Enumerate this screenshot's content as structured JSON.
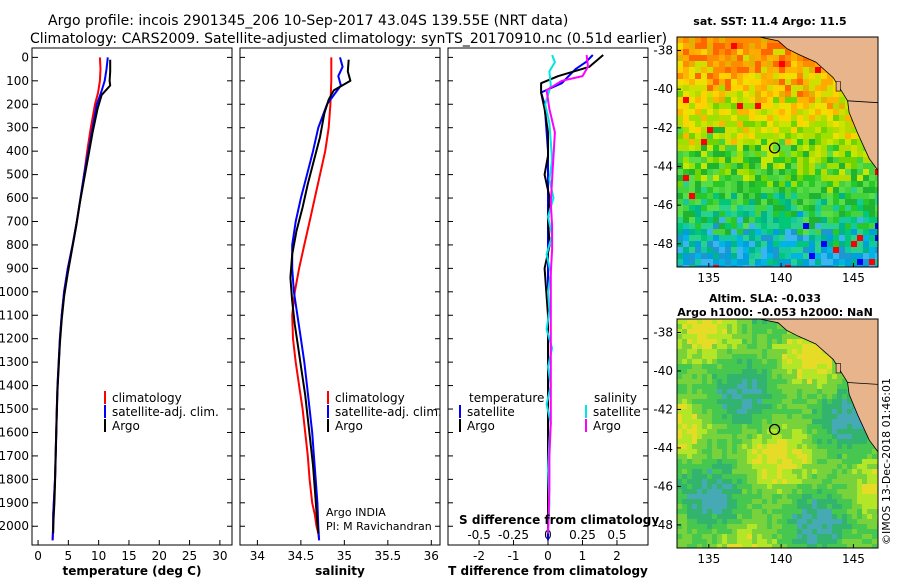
{
  "title": {
    "line1": "Argo profile: incois 2901345_206 10-Sep-2017 43.04S 139.55E (NRT data)",
    "line2": "Climatology: CARS2009. Satellite-adjusted climatology: synTS_20170910.nc (0.51d earlier)"
  },
  "colors": {
    "climatology": "#ff0000",
    "satellite": "#0000ff",
    "argo": "#000000",
    "sal_satellite": "#00e5e5",
    "sal_argo": "#ff00ff"
  },
  "depth_axis": {
    "ticks": [
      "0",
      "100",
      "200",
      "300",
      "400",
      "500",
      "600",
      "700",
      "800",
      "900",
      "1000",
      "1100",
      "1200",
      "1300",
      "1400",
      "1500",
      "1600",
      "1700",
      "1800",
      "1900",
      "2000"
    ],
    "range": [
      -40,
      2080
    ]
  },
  "chart_data": [
    {
      "type": "line",
      "name": "temperature-panel",
      "xlabel": "temperature (deg C)",
      "xlim": [
        -1,
        32
      ],
      "xticks": [
        "0",
        "5",
        "10",
        "15",
        "20",
        "25",
        "30"
      ],
      "legend": [
        "climatology",
        "satellite-adj. clim.",
        "Argo"
      ],
      "series": [
        {
          "name": "climatology",
          "color": "#ff0000",
          "x": [
            10.2,
            10.3,
            10.2,
            9.9,
            9.4,
            8.7,
            8.1,
            7.6,
            7.0,
            6.4,
            5.7,
            4.9,
            4.3,
            3.9,
            3.6,
            3.4,
            3.2,
            3.1,
            3.0,
            2.9,
            2.8,
            2.7,
            2.6,
            2.5,
            2.5,
            2.45,
            2.4
          ],
          "y": [
            0,
            50,
            100,
            150,
            200,
            300,
            400,
            500,
            600,
            700,
            800,
            900,
            1000,
            1100,
            1200,
            1300,
            1400,
            1500,
            1600,
            1700,
            1800,
            1850,
            1900,
            1950,
            2000,
            2030,
            2060
          ]
        },
        {
          "name": "satellite-adj. clim.",
          "color": "#0000ff",
          "x": [
            11.5,
            11.3,
            11.0,
            10.4,
            9.7,
            9.0,
            8.3,
            7.6,
            7.0,
            6.4,
            5.7,
            4.9,
            4.3,
            3.9,
            3.6,
            3.4,
            3.2,
            3.1,
            3.0,
            2.9,
            2.8,
            2.7,
            2.6,
            2.5,
            2.5,
            2.45,
            2.4
          ],
          "y": [
            0,
            50,
            100,
            150,
            200,
            300,
            400,
            500,
            600,
            700,
            800,
            900,
            1000,
            1100,
            1200,
            1300,
            1400,
            1500,
            1600,
            1700,
            1800,
            1850,
            1900,
            1950,
            2000,
            2030,
            2060
          ]
        },
        {
          "name": "Argo",
          "color": "#000000",
          "x": [
            11.9,
            11.9,
            11.8,
            11.9,
            10.5,
            9.8,
            9.0,
            8.3,
            7.6,
            6.9,
            6.3,
            5.6,
            4.9,
            4.3,
            3.9,
            3.6,
            3.4,
            3.2,
            3.1,
            3.0,
            2.9,
            2.8,
            2.7,
            2.6,
            2.5,
            2.5
          ],
          "y": [
            10,
            60,
            100,
            120,
            160,
            220,
            320,
            420,
            520,
            620,
            720,
            820,
            920,
            1020,
            1120,
            1220,
            1320,
            1420,
            1520,
            1620,
            1720,
            1820,
            1900,
            1950,
            2000,
            2030
          ]
        }
      ]
    },
    {
      "type": "line",
      "name": "salinity-panel",
      "xlabel": "salinity",
      "xlim": [
        33.8,
        36.1
      ],
      "xticks": [
        "34",
        "34.5",
        "35",
        "35.5",
        "36"
      ],
      "legend": [
        "climatology",
        "satellite-adj. clim.",
        "Argo"
      ],
      "annotation": [
        "Argo INDIA",
        "PI: M Ravichandran"
      ],
      "series": [
        {
          "name": "climatology",
          "color": "#ff0000",
          "x": [
            34.85,
            34.85,
            34.84,
            34.82,
            34.78,
            34.72,
            34.66,
            34.6,
            34.54,
            34.48,
            34.43,
            34.4,
            34.41,
            34.44,
            34.48,
            34.52,
            34.55,
            34.58,
            34.6,
            34.63,
            34.66,
            34.68,
            34.7,
            34.71
          ],
          "y": [
            0,
            100,
            200,
            300,
            400,
            500,
            600,
            700,
            800,
            900,
            1000,
            1100,
            1200,
            1300,
            1400,
            1500,
            1600,
            1700,
            1800,
            1900,
            1950,
            2000,
            2030,
            2060
          ]
        },
        {
          "name": "satellite-adj. clim.",
          "color": "#0000ff",
          "x": [
            34.95,
            34.98,
            34.93,
            34.96,
            34.9,
            34.8,
            34.7,
            34.64,
            34.57,
            34.5,
            34.44,
            34.4,
            34.4,
            34.42,
            34.46,
            34.5,
            34.54,
            34.57,
            34.6,
            34.63,
            34.65,
            34.67,
            34.69,
            34.7,
            34.71
          ],
          "y": [
            0,
            40,
            80,
            120,
            150,
            200,
            300,
            400,
            500,
            600,
            700,
            800,
            900,
            1000,
            1100,
            1200,
            1300,
            1400,
            1500,
            1600,
            1700,
            1800,
            1900,
            2000,
            2060
          ]
        },
        {
          "name": "Argo",
          "color": "#000000",
          "x": [
            35.05,
            35.04,
            35.07,
            34.88,
            34.82,
            34.77,
            34.72,
            34.65,
            34.58,
            34.52,
            34.45,
            34.4,
            34.38,
            34.4,
            34.43,
            34.47,
            34.51,
            34.55,
            34.58,
            34.61,
            34.64,
            34.66,
            34.68,
            34.7
          ],
          "y": [
            10,
            60,
            100,
            140,
            180,
            240,
            340,
            440,
            540,
            640,
            740,
            840,
            940,
            1040,
            1140,
            1240,
            1340,
            1440,
            1540,
            1640,
            1740,
            1840,
            1940,
            2030
          ]
        }
      ]
    },
    {
      "type": "line",
      "name": "difference-panel",
      "xlabel": "T difference from climatology",
      "xlabel_top": "S difference from climatology",
      "xlim": [
        -2.9,
        2.9
      ],
      "xticks": [
        "-2",
        "-1",
        "0",
        "1",
        "2"
      ],
      "xticks_top": [
        "-0.5",
        "-0.25",
        "0",
        "0.25",
        "0.5"
      ],
      "legend_left_header": "temperature",
      "legend_right_header": "salinity",
      "legend_left": [
        "satellite",
        "Argo"
      ],
      "legend_right": [
        "satellite",
        "Argo"
      ],
      "series": [
        {
          "name": "temperature satellite",
          "color": "#0000ff",
          "x": [
            1.3,
            1.1,
            0.8,
            0.6,
            0.4,
            -0.2,
            -0.1,
            -0.05,
            0,
            0,
            0,
            0,
            0,
            0,
            0,
            0,
            0,
            0,
            0,
            0,
            0,
            0,
            0
          ],
          "y": [
            -10,
            20,
            50,
            80,
            110,
            150,
            200,
            300,
            400,
            500,
            600,
            700,
            800,
            900,
            1000,
            1100,
            1200,
            1300,
            1400,
            1600,
            1800,
            2000,
            2060
          ]
        },
        {
          "name": "temperature Argo",
          "color": "#000000",
          "x": [
            1.6,
            1.2,
            0.3,
            -0.2,
            -0.2,
            -0.1,
            0,
            0,
            -0.1,
            0.05,
            0,
            0.05,
            -0.1,
            -0.05,
            0,
            0,
            0,
            0,
            0,
            0,
            0,
            0,
            0
          ],
          "y": [
            -10,
            40,
            80,
            110,
            150,
            220,
            320,
            420,
            500,
            600,
            700,
            800,
            900,
            1000,
            1100,
            1200,
            1300,
            1400,
            1500,
            1600,
            1800,
            1950,
            2030
          ]
        },
        {
          "name": "salinity satellite",
          "color": "#00e5e5",
          "x": [
            0.03,
            0.05,
            0.01,
            0.02,
            -0.02,
            0.01,
            0.02,
            0.03,
            0.01,
            0.04,
            0,
            0.03,
            -0.01,
            0.02,
            0,
            0.01,
            -0.01,
            0.03,
            0,
            0.02,
            -0.01,
            0.02,
            0.01,
            0.0,
            0.01,
            0
          ],
          "y": [
            -10,
            20,
            60,
            120,
            200,
            280,
            360,
            440,
            520,
            600,
            680,
            760,
            840,
            920,
            1000,
            1080,
            1160,
            1240,
            1320,
            1400,
            1480,
            1560,
            1640,
            1760,
            1900,
            2030
          ]
        },
        {
          "name": "salinity Argo",
          "color": "#ff00ff",
          "x": [
            0.28,
            0.29,
            0.25,
            0.1,
            -0.01,
            0.01,
            0.05,
            0.04,
            0.03,
            0.02,
            0.03,
            0.03,
            0.02,
            0.02,
            0.02,
            0.02,
            0.02,
            0.02,
            0.02,
            0.01,
            0.01,
            0
          ],
          "y": [
            -10,
            40,
            80,
            100,
            140,
            220,
            320,
            420,
            520,
            620,
            720,
            820,
            920,
            1020,
            1120,
            1220,
            1320,
            1420,
            1560,
            1700,
            1850,
            2030
          ]
        }
      ]
    },
    {
      "type": "heatmap",
      "name": "sst-map",
      "title": "sat. SST: 11.4 Argo: 11.5",
      "xlim": [
        132.8,
        146.7
      ],
      "ylim": [
        -49.2,
        -37.3
      ],
      "xticks": [
        "135",
        "140",
        "145"
      ],
      "yticks": [
        "-38",
        "-40",
        "-42",
        "-44",
        "-46",
        "-48"
      ],
      "argo_marker": {
        "lon": 139.55,
        "lat": -43.04
      }
    },
    {
      "type": "heatmap",
      "name": "sla-map",
      "title_line1": "Altim. SLA: -0.033",
      "title_line2": "Argo h1000: -0.053 h2000: NaN",
      "xlim": [
        132.8,
        146.7
      ],
      "ylim": [
        -49.2,
        -37.3
      ],
      "xticks": [
        "135",
        "140",
        "145"
      ],
      "yticks": [
        "-38",
        "-40",
        "-42",
        "-44",
        "-46",
        "-48"
      ],
      "argo_marker": {
        "lon": 139.55,
        "lat": -43.04
      }
    }
  ],
  "credit": "©IMOS 13-Dec-2018 01:46:01"
}
